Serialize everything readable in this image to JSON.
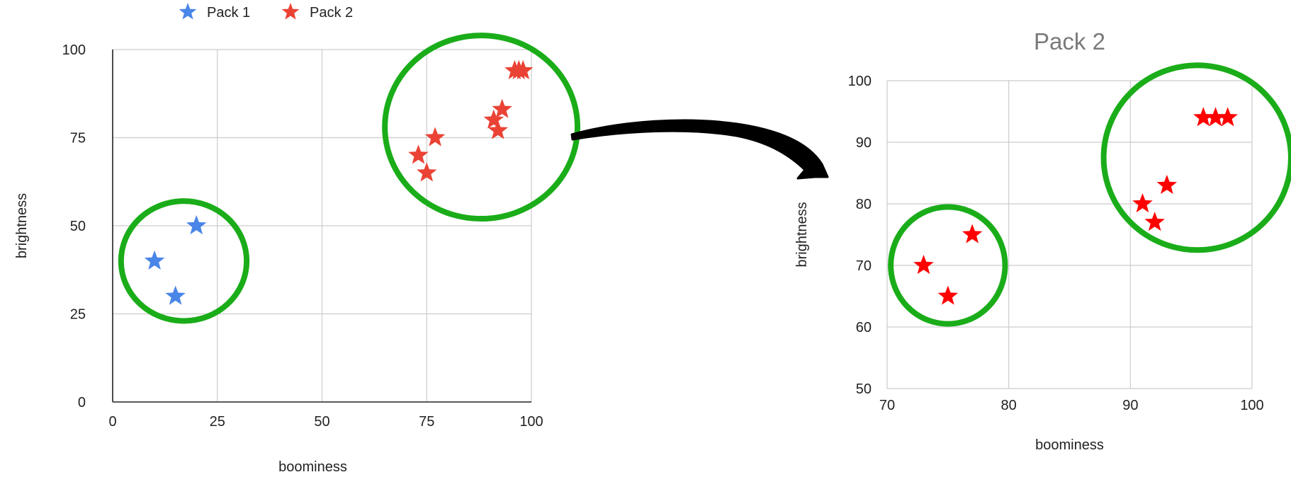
{
  "colors": {
    "pack1": "#4a86e8",
    "pack2_left": "#ea4335",
    "pack2_right": "#ff0000",
    "highlight": "#1aad19",
    "arrow": "#000000"
  },
  "icons": {
    "marker": "star-icon",
    "connector": "curved-arrow-icon"
  },
  "chart_data": [
    {
      "type": "scatter",
      "title": "",
      "xlabel": "boominess",
      "ylabel": "brightness",
      "xlim": [
        0,
        100
      ],
      "ylim": [
        0,
        100
      ],
      "xticks": [
        "0",
        "25",
        "50",
        "75",
        "100"
      ],
      "yticks": [
        "0",
        "25",
        "50",
        "75",
        "100"
      ],
      "grid": true,
      "legend_position": "top",
      "legend": [
        "Pack 1",
        "Pack 2"
      ],
      "series": [
        {
          "name": "Pack 1",
          "marker": "star",
          "points": [
            [
              10,
              40
            ],
            [
              15,
              30
            ],
            [
              20,
              50
            ]
          ]
        },
        {
          "name": "Pack 2",
          "marker": "star",
          "points": [
            [
              73,
              70
            ],
            [
              75,
              65
            ],
            [
              77,
              75
            ],
            [
              91,
              80
            ],
            [
              92,
              77
            ],
            [
              93,
              83
            ],
            [
              96,
              94
            ],
            [
              97,
              94
            ],
            [
              98,
              94
            ]
          ]
        }
      ],
      "annotations": [
        {
          "shape": "circle",
          "cx": 17,
          "cy": 40,
          "rx": 15,
          "ry": 17
        },
        {
          "shape": "circle",
          "cx": 88,
          "cy": 78,
          "rx": 23,
          "ry": 26
        }
      ]
    },
    {
      "type": "scatter",
      "title": "Pack 2",
      "xlabel": "boominess",
      "ylabel": "brightness",
      "xlim": [
        70,
        100
      ],
      "ylim": [
        50,
        100
      ],
      "xticks": [
        "70",
        "80",
        "90",
        "100"
      ],
      "yticks": [
        "50",
        "60",
        "70",
        "80",
        "90",
        "100"
      ],
      "grid": true,
      "series": [
        {
          "name": "Pack 2",
          "marker": "star",
          "points": [
            [
              73,
              70
            ],
            [
              75,
              65
            ],
            [
              77,
              75
            ],
            [
              91,
              80
            ],
            [
              92,
              77
            ],
            [
              93,
              83
            ],
            [
              96,
              94
            ],
            [
              97,
              94
            ],
            [
              98,
              94
            ]
          ]
        }
      ],
      "annotations": [
        {
          "shape": "circle",
          "cx": 75,
          "cy": 70,
          "rx": 4.7,
          "ry": 9.5
        },
        {
          "shape": "circle",
          "cx": 95.5,
          "cy": 87.5,
          "rx": 7.7,
          "ry": 15
        }
      ]
    }
  ]
}
